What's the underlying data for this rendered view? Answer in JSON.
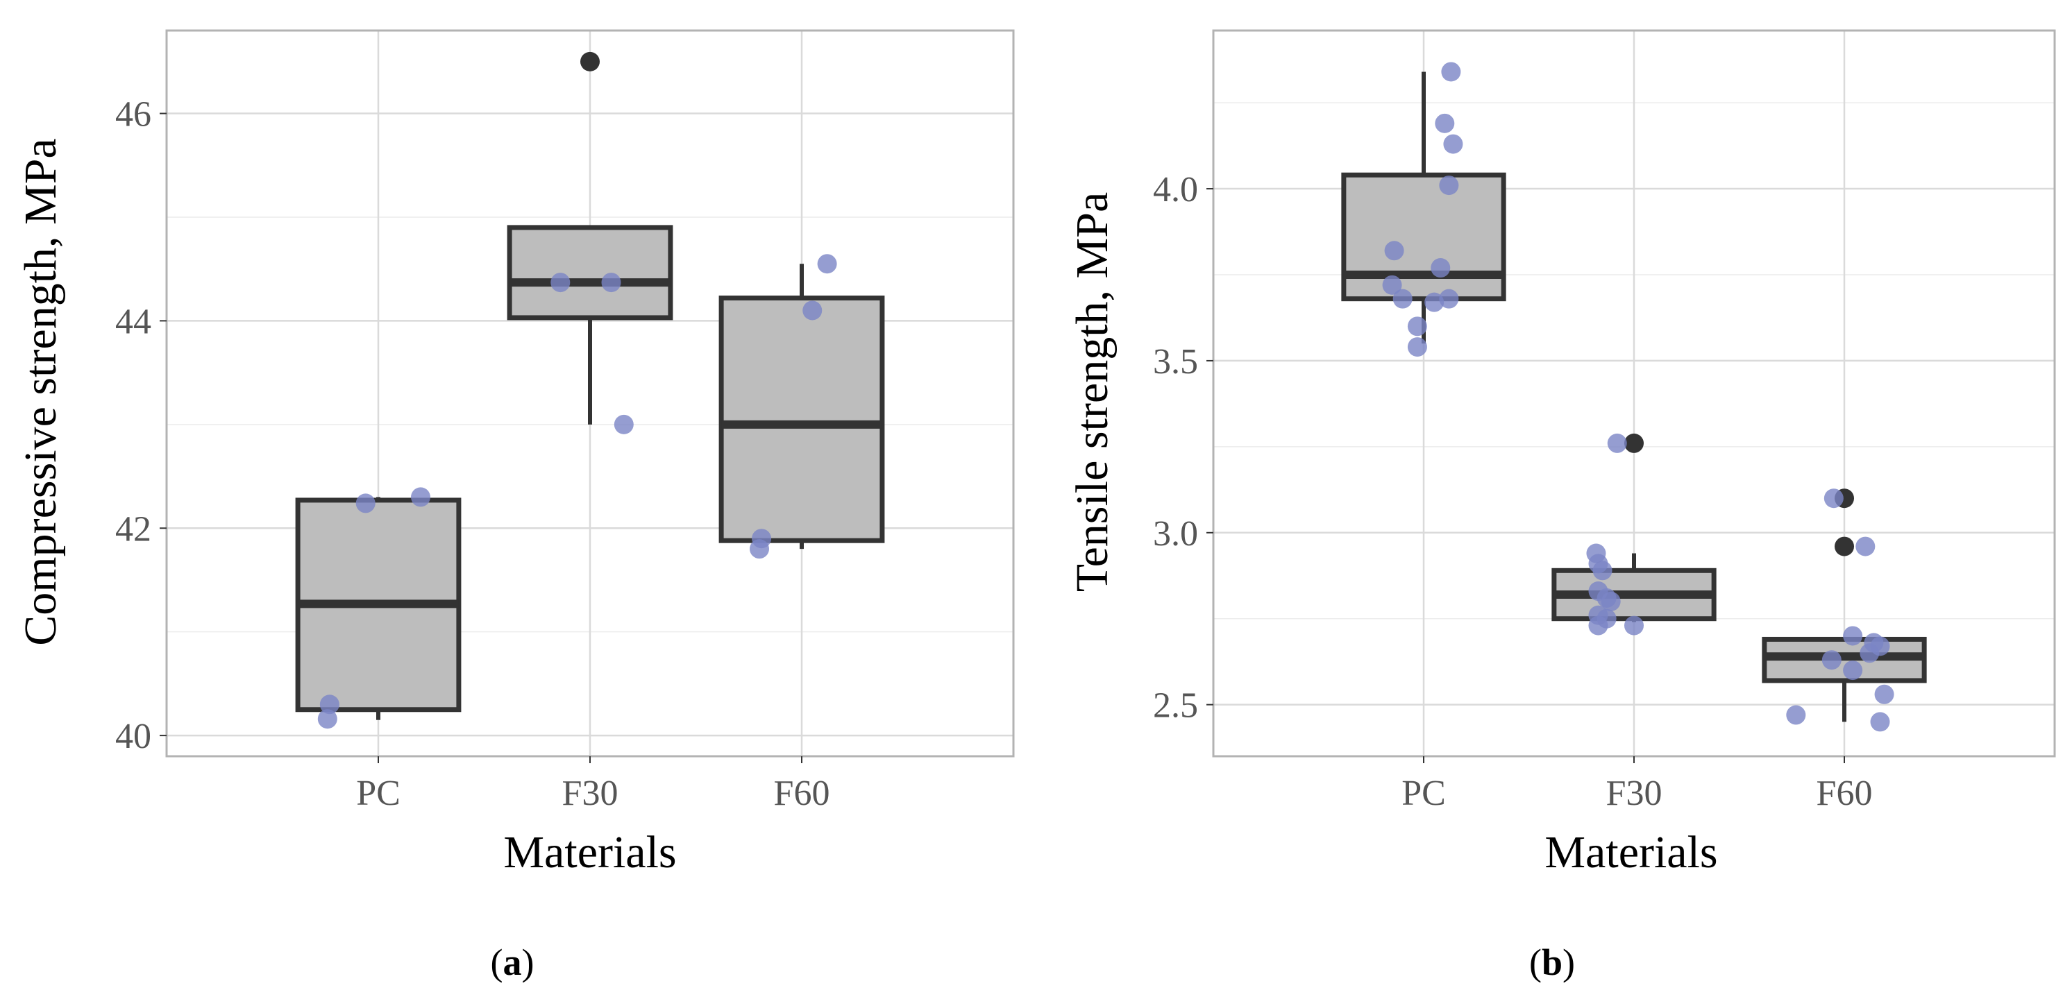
{
  "chart_data": [
    {
      "type": "box",
      "caption_letter": "a",
      "caption_open": "(",
      "caption_close": ")",
      "title": "",
      "xlabel": "Materials",
      "ylabel": "Compressive strength, MPa",
      "categories": [
        "PC",
        "F30",
        "F60"
      ],
      "ylim": [
        39.8,
        46.8
      ],
      "yticks": [
        40,
        42,
        44,
        46
      ],
      "ytick_labels": [
        "40",
        "42",
        "44",
        "46"
      ],
      "yminor": [
        41,
        43,
        45
      ],
      "boxes": [
        {
          "category": "PC",
          "whisker_low": 40.15,
          "q1": 40.25,
          "median": 41.27,
          "q3": 42.27,
          "whisker_high": 42.3
        },
        {
          "category": "F30",
          "whisker_low": 43.0,
          "q1": 44.03,
          "median": 44.37,
          "q3": 44.9,
          "whisker_high": 44.9
        },
        {
          "category": "F60",
          "whisker_low": 41.8,
          "q1": 41.88,
          "median": 43.0,
          "q3": 44.22,
          "whisker_high": 44.55
        }
      ],
      "outliers": [
        {
          "category": "F30",
          "value": 46.5
        }
      ],
      "jitter_points": [
        {
          "category": "PC",
          "offset": -0.23,
          "value": 40.3
        },
        {
          "category": "PC",
          "offset": -0.24,
          "value": 40.16
        },
        {
          "category": "PC",
          "offset": -0.06,
          "value": 42.24
        },
        {
          "category": "PC",
          "offset": 0.2,
          "value": 42.3
        },
        {
          "category": "F30",
          "offset": -0.14,
          "value": 44.37
        },
        {
          "category": "F30",
          "offset": 0.1,
          "value": 44.37
        },
        {
          "category": "F30",
          "offset": 0.16,
          "value": 43.0
        },
        {
          "category": "F60",
          "offset": -0.19,
          "value": 41.9
        },
        {
          "category": "F60",
          "offset": -0.2,
          "value": 41.8
        },
        {
          "category": "F60",
          "offset": 0.05,
          "value": 44.1
        },
        {
          "category": "F60",
          "offset": 0.12,
          "value": 44.55
        }
      ]
    },
    {
      "type": "box",
      "caption_letter": "b",
      "caption_open": "(",
      "caption_close": ")",
      "title": "",
      "xlabel": "Materials",
      "ylabel": "Tensile strength, MPa",
      "categories": [
        "PC",
        "F30",
        "F60"
      ],
      "ylim": [
        2.35,
        4.46
      ],
      "yticks": [
        2.5,
        3.0,
        3.5,
        4.0
      ],
      "ytick_labels": [
        "2.5",
        "3.0",
        "3.5",
        "4.0"
      ],
      "yminor": [
        2.75,
        3.25,
        3.75,
        4.25
      ],
      "boxes": [
        {
          "category": "PC",
          "whisker_low": 3.55,
          "q1": 3.68,
          "median": 3.75,
          "q3": 4.04,
          "whisker_high": 4.34
        },
        {
          "category": "F30",
          "whisker_low": 2.74,
          "q1": 2.75,
          "median": 2.82,
          "q3": 2.89,
          "whisker_high": 2.94
        },
        {
          "category": "F60",
          "whisker_low": 2.45,
          "q1": 2.57,
          "median": 2.64,
          "q3": 2.69,
          "whisker_high": 2.69
        }
      ],
      "outliers": [
        {
          "category": "F30",
          "value": 3.26
        },
        {
          "category": "F60",
          "value": 3.1
        },
        {
          "category": "F60",
          "value": 2.96
        }
      ],
      "jitter_points": [
        {
          "category": "PC",
          "offset": -0.14,
          "value": 3.82
        },
        {
          "category": "PC",
          "offset": -0.15,
          "value": 3.72
        },
        {
          "category": "PC",
          "offset": -0.1,
          "value": 3.68
        },
        {
          "category": "PC",
          "offset": -0.03,
          "value": 3.6
        },
        {
          "category": "PC",
          "offset": -0.03,
          "value": 3.54
        },
        {
          "category": "PC",
          "offset": 0.05,
          "value": 3.67
        },
        {
          "category": "PC",
          "offset": 0.08,
          "value": 3.77
        },
        {
          "category": "PC",
          "offset": 0.12,
          "value": 3.68
        },
        {
          "category": "PC",
          "offset": 0.12,
          "value": 4.01
        },
        {
          "category": "PC",
          "offset": 0.14,
          "value": 4.13
        },
        {
          "category": "PC",
          "offset": 0.1,
          "value": 4.19
        },
        {
          "category": "PC",
          "offset": 0.13,
          "value": 4.34
        },
        {
          "category": "F30",
          "offset": -0.18,
          "value": 2.94
        },
        {
          "category": "F30",
          "offset": -0.17,
          "value": 2.91
        },
        {
          "category": "F30",
          "offset": -0.15,
          "value": 2.89
        },
        {
          "category": "F30",
          "offset": -0.17,
          "value": 2.83
        },
        {
          "category": "F30",
          "offset": -0.17,
          "value": 2.76
        },
        {
          "category": "F30",
          "offset": -0.17,
          "value": 2.73
        },
        {
          "category": "F30",
          "offset": -0.13,
          "value": 2.75
        },
        {
          "category": "F30",
          "offset": -0.13,
          "value": 2.81
        },
        {
          "category": "F30",
          "offset": -0.11,
          "value": 2.8
        },
        {
          "category": "F30",
          "offset": 0.0,
          "value": 2.73
        },
        {
          "category": "F30",
          "offset": -0.08,
          "value": 3.26
        },
        {
          "category": "F60",
          "offset": -0.05,
          "value": 3.1
        },
        {
          "category": "F60",
          "offset": 0.1,
          "value": 2.96
        },
        {
          "category": "F60",
          "offset": -0.23,
          "value": 2.47
        },
        {
          "category": "F60",
          "offset": -0.06,
          "value": 2.63
        },
        {
          "category": "F60",
          "offset": 0.04,
          "value": 2.6
        },
        {
          "category": "F60",
          "offset": 0.04,
          "value": 2.7
        },
        {
          "category": "F60",
          "offset": 0.12,
          "value": 2.65
        },
        {
          "category": "F60",
          "offset": 0.14,
          "value": 2.68
        },
        {
          "category": "F60",
          "offset": 0.17,
          "value": 2.67
        },
        {
          "category": "F60",
          "offset": 0.19,
          "value": 2.53
        },
        {
          "category": "F60",
          "offset": 0.17,
          "value": 2.45
        }
      ]
    }
  ]
}
